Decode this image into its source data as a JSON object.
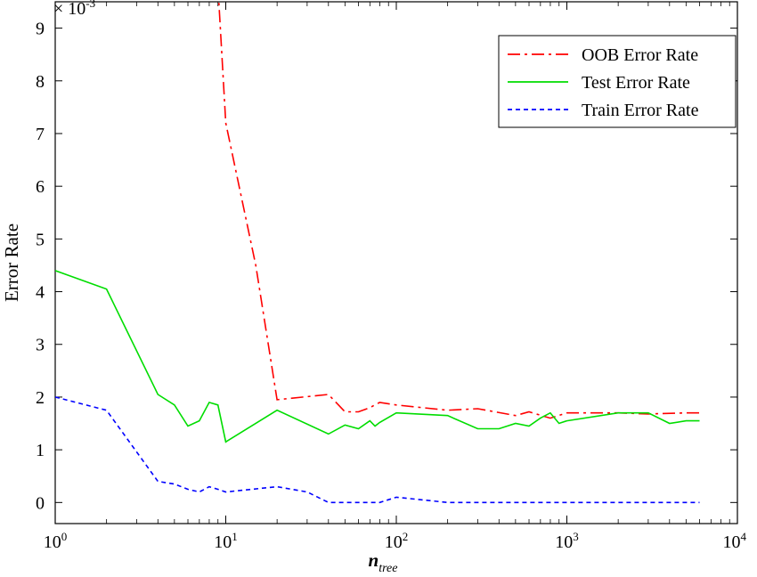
{
  "chart_data": {
    "type": "line",
    "xscale": "log",
    "xlim": [
      1,
      10000
    ],
    "ylim": [
      -0.0004,
      0.0095
    ],
    "grid": false,
    "legend_position": "top-right",
    "ylabel": "Error Rate",
    "xlabel_main": "n",
    "xlabel_sub": "tree",
    "y_multiplier": "× 10",
    "y_multiplier_exp": "-3",
    "yticks": [
      0,
      0.001,
      0.002,
      0.003,
      0.004,
      0.005,
      0.006,
      0.007,
      0.008,
      0.009
    ],
    "ytick_labels": [
      "0",
      "1",
      "2",
      "3",
      "4",
      "5",
      "6",
      "7",
      "8",
      "9"
    ],
    "xticks": [
      {
        "value": 1,
        "base": "10",
        "exp": "0"
      },
      {
        "value": 10,
        "base": "10",
        "exp": "1"
      },
      {
        "value": 100,
        "base": "10",
        "exp": "2"
      },
      {
        "value": 1000,
        "base": "10",
        "exp": "3"
      },
      {
        "value": 10000,
        "base": "10",
        "exp": "4"
      }
    ],
    "series": [
      {
        "name": "OOB Error Rate",
        "color": "#ff0000",
        "dash": "14 5 3 5",
        "x": [
          9,
          10,
          15,
          20,
          40,
          50,
          60,
          70,
          80,
          100,
          200,
          300,
          500,
          600,
          800,
          1000,
          2000,
          3000,
          5000,
          6000
        ],
        "y": [
          0.0098,
          0.0072,
          0.0045,
          0.00195,
          0.00205,
          0.00172,
          0.00172,
          0.0018,
          0.0019,
          0.00185,
          0.00175,
          0.00178,
          0.00165,
          0.00172,
          0.0016,
          0.0017,
          0.0017,
          0.00168,
          0.0017,
          0.0017
        ]
      },
      {
        "name": "Test Error Rate",
        "color": "#00dd00",
        "dash": "",
        "x": [
          1,
          2,
          4,
          5,
          6,
          7,
          8,
          9,
          10,
          20,
          40,
          50,
          60,
          70,
          75,
          80,
          100,
          200,
          300,
          400,
          500,
          600,
          700,
          800,
          900,
          1000,
          2000,
          3000,
          4000,
          5000,
          6000
        ],
        "y": [
          0.0044,
          0.00405,
          0.00205,
          0.00185,
          0.00145,
          0.00155,
          0.0019,
          0.00185,
          0.00115,
          0.00175,
          0.0013,
          0.00147,
          0.0014,
          0.00155,
          0.00145,
          0.00152,
          0.0017,
          0.00165,
          0.0014,
          0.0014,
          0.0015,
          0.00145,
          0.0016,
          0.0017,
          0.0015,
          0.00155,
          0.0017,
          0.0017,
          0.0015,
          0.00155,
          0.00155
        ]
      },
      {
        "name": "Train Error Rate",
        "color": "#0000ff",
        "dash": "5 4",
        "x": [
          1,
          2,
          4,
          5,
          6,
          7,
          8,
          9,
          10,
          20,
          30,
          40,
          50,
          80,
          100,
          200,
          300,
          500,
          1000,
          6000
        ],
        "y": [
          0.002,
          0.00175,
          0.0004,
          0.00035,
          0.00025,
          0.0002,
          0.0003,
          0.00025,
          0.0002,
          0.0003,
          0.0002,
          0.0,
          0.0,
          0.0,
          0.0001,
          0.0,
          0.0,
          0.0,
          0.0,
          0.0
        ]
      }
    ]
  }
}
